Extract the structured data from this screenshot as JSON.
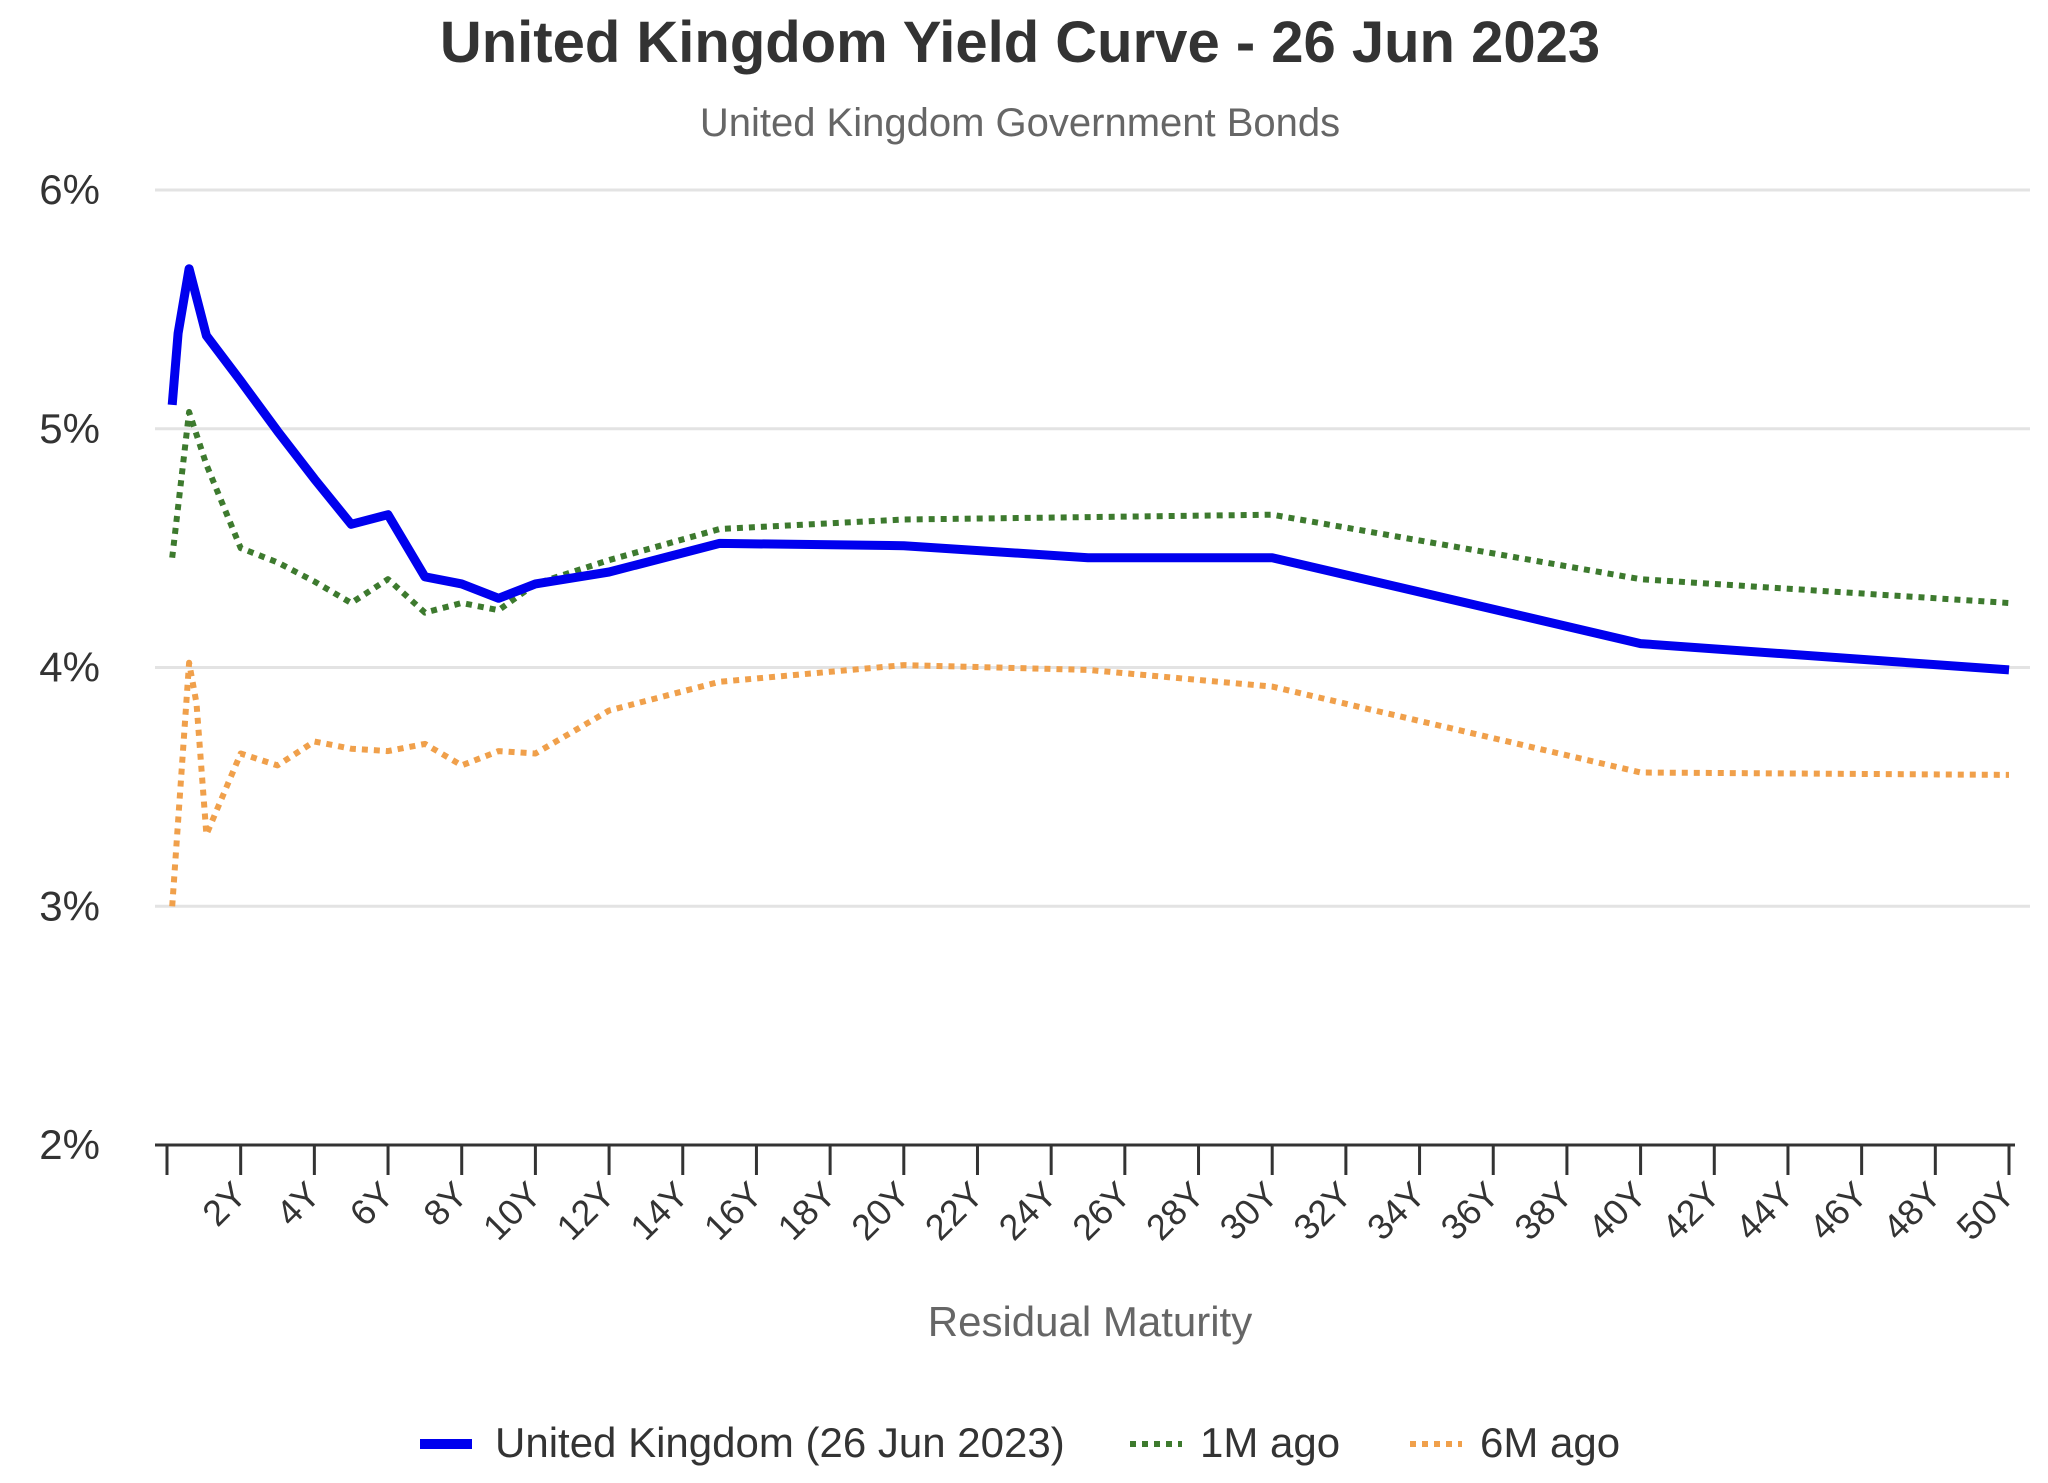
{
  "chart_data": {
    "type": "line",
    "title": "United Kingdom Yield Curve - 26 Jun 2023",
    "subtitle": "United Kingdom Government Bonds",
    "xlabel": "Residual Maturity",
    "ylabel": "",
    "xlim": [
      0,
      50
    ],
    "ylim": [
      2,
      6
    ],
    "yticks": [
      2,
      3,
      4,
      5,
      6
    ],
    "ytick_labels": [
      "2%",
      "3%",
      "4%",
      "5%",
      "6%"
    ],
    "xticks": [
      2,
      4,
      6,
      8,
      10,
      12,
      14,
      16,
      18,
      20,
      22,
      24,
      26,
      28,
      30,
      32,
      34,
      36,
      38,
      40,
      42,
      44,
      46,
      48,
      50
    ],
    "xtick_labels": [
      "2Y",
      "4Y",
      "6Y",
      "8Y",
      "10Y",
      "12Y",
      "14Y",
      "16Y",
      "18Y",
      "20Y",
      "22Y",
      "24Y",
      "26Y",
      "28Y",
      "30Y",
      "32Y",
      "34Y",
      "36Y",
      "38Y",
      "40Y",
      "42Y",
      "44Y",
      "46Y",
      "48Y",
      "50Y"
    ],
    "grid": true,
    "legend_placement": "bottom",
    "series": [
      {
        "name": "United Kingdom (26 Jun 2023)",
        "color": "#0000ee",
        "style": "solid",
        "x": [
          0.14,
          0.3,
          0.6,
          1.07,
          2,
          3,
          4,
          5,
          6,
          7,
          8,
          9,
          10,
          12,
          15,
          20,
          25,
          30,
          40,
          50
        ],
        "y": [
          5.1,
          5.4,
          5.67,
          5.39,
          5.2,
          4.99,
          4.79,
          4.6,
          4.64,
          4.38,
          4.35,
          4.29,
          4.35,
          4.4,
          4.52,
          4.51,
          4.46,
          4.46,
          4.1,
          3.99
        ]
      },
      {
        "name": "1M ago",
        "color": "#3d7a2e",
        "style": "dotted",
        "x": [
          0.14,
          0.6,
          1.07,
          2,
          3,
          4,
          5,
          6,
          7,
          8,
          9,
          10,
          12,
          15,
          20,
          25,
          30,
          40,
          50
        ],
        "y": [
          4.46,
          5.07,
          4.85,
          4.5,
          4.44,
          4.36,
          4.27,
          4.37,
          4.23,
          4.27,
          4.24,
          4.35,
          4.45,
          4.58,
          4.62,
          4.63,
          4.64,
          4.37,
          4.27
        ]
      },
      {
        "name": "6M ago",
        "color": "#f0a04b",
        "style": "dotted",
        "x": [
          0.14,
          0.6,
          0.8,
          1.07,
          2,
          3,
          4,
          5,
          6,
          7,
          8,
          9,
          10,
          12,
          15,
          20,
          25,
          30,
          40,
          50
        ],
        "y": [
          3.0,
          4.02,
          3.85,
          3.3,
          3.64,
          3.59,
          3.69,
          3.66,
          3.65,
          3.68,
          3.59,
          3.65,
          3.64,
          3.82,
          3.94,
          4.01,
          3.99,
          3.92,
          3.56,
          3.55
        ]
      }
    ]
  }
}
